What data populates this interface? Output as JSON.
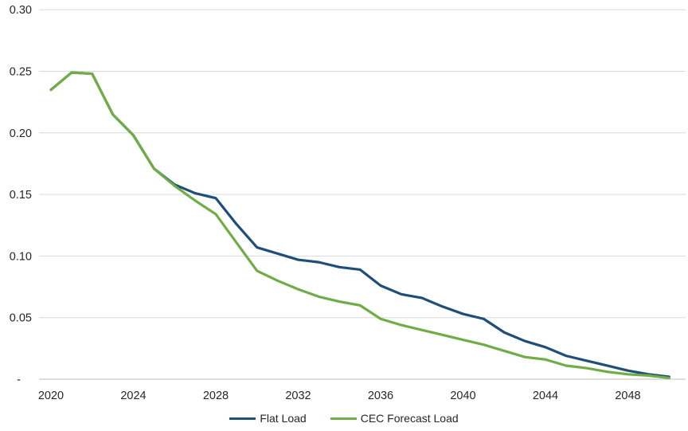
{
  "chart_data": {
    "type": "line",
    "title": "",
    "xlabel": "",
    "ylabel": "",
    "x": [
      2020,
      2021,
      2022,
      2023,
      2024,
      2025,
      2026,
      2027,
      2028,
      2029,
      2030,
      2031,
      2032,
      2033,
      2034,
      2035,
      2036,
      2037,
      2038,
      2039,
      2040,
      2041,
      2042,
      2043,
      2044,
      2045,
      2046,
      2047,
      2048,
      2049,
      2050
    ],
    "series": [
      {
        "name": "Flat Load",
        "color": "#1F4E79",
        "values": [
          0.235,
          0.249,
          0.248,
          0.215,
          0.198,
          0.171,
          0.158,
          0.151,
          0.147,
          0.126,
          0.107,
          0.102,
          0.097,
          0.095,
          0.091,
          0.089,
          0.076,
          0.069,
          0.066,
          0.059,
          0.053,
          0.049,
          0.038,
          0.031,
          0.026,
          0.019,
          0.015,
          0.011,
          0.007,
          0.004,
          0.002
        ]
      },
      {
        "name": "CEC Forecast Load",
        "color": "#70AD47",
        "values": [
          0.235,
          0.249,
          0.248,
          0.215,
          0.198,
          0.171,
          0.157,
          0.145,
          0.134,
          0.111,
          0.088,
          0.08,
          0.073,
          0.067,
          0.063,
          0.06,
          0.049,
          0.044,
          0.04,
          0.036,
          0.032,
          0.028,
          0.023,
          0.018,
          0.016,
          0.011,
          0.009,
          0.006,
          0.004,
          0.003,
          0.001
        ]
      }
    ],
    "xlim": [
      2020,
      2050
    ],
    "ylim": [
      0,
      0.3
    ],
    "ytick_values": [
      0.3,
      0.25,
      0.2,
      0.15,
      0.1,
      0.05,
      0
    ],
    "ytick_labels": [
      "0.30",
      "0.25",
      "0.20",
      "0.15",
      "0.10",
      "0.05",
      "-"
    ],
    "xtick_values": [
      2020,
      2024,
      2028,
      2032,
      2036,
      2040,
      2044,
      2048
    ],
    "xtick_labels": [
      "2020",
      "2024",
      "2028",
      "2032",
      "2036",
      "2040",
      "2044",
      "2048"
    ],
    "grid": "horizontal",
    "gridline_color": "#D9D9D9",
    "axis_line_color": "#BFBFBF",
    "tick_label_color": "#262626",
    "legend_position": "bottom"
  }
}
